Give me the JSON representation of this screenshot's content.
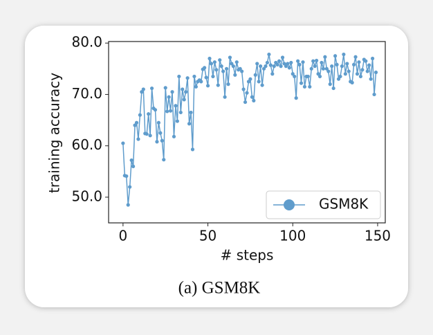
{
  "chart_data": {
    "type": "line",
    "caption": "(a) GSM8K",
    "xlabel": "# steps",
    "ylabel": "training accuracy",
    "xlim": [
      -8.5,
      154.5
    ],
    "ylim": [
      45,
      80.3
    ],
    "xticks": [
      0,
      50,
      100,
      150
    ],
    "yticks": [
      {
        "value": 50,
        "label": "50.0"
      },
      {
        "value": 60,
        "label": "60.0"
      },
      {
        "value": 70,
        "label": "70.0"
      },
      {
        "value": 80,
        "label": "80.0"
      }
    ],
    "legend": "lower right",
    "x": [
      0,
      1,
      2,
      3,
      4,
      5,
      6,
      7,
      8,
      9,
      10,
      11,
      12,
      13,
      14,
      15,
      16,
      17,
      18,
      19,
      20,
      21,
      22,
      23,
      24,
      25,
      26,
      27,
      28,
      29,
      30,
      31,
      32,
      33,
      34,
      35,
      36,
      37,
      38,
      39,
      40,
      41,
      42,
      43,
      44,
      45,
      46,
      47,
      48,
      49,
      50,
      51,
      52,
      53,
      54,
      55,
      56,
      57,
      58,
      59,
      60,
      61,
      62,
      63,
      64,
      65,
      66,
      67,
      68,
      69,
      70,
      71,
      72,
      73,
      74,
      75,
      76,
      77,
      78,
      79,
      80,
      81,
      82,
      83,
      84,
      85,
      86,
      87,
      88,
      89,
      90,
      91,
      92,
      93,
      94,
      95,
      96,
      97,
      98,
      99,
      100,
      101,
      102,
      103,
      104,
      105,
      106,
      107,
      108,
      109,
      110,
      111,
      112,
      113,
      114,
      115,
      116,
      117,
      118,
      119,
      120,
      121,
      122,
      123,
      124,
      125,
      126,
      127,
      128,
      129,
      130,
      131,
      132,
      133,
      134,
      135,
      136,
      137,
      138,
      139,
      140,
      141,
      142,
      143,
      144,
      145,
      146,
      147,
      148,
      149
    ],
    "series": [
      {
        "name": "GSM8K",
        "color": "#5f9ccc",
        "values": [
          60.5,
          54.2,
          54.1,
          48.5,
          52.0,
          57.2,
          56.0,
          64.0,
          64.5,
          61.3,
          66.0,
          70.5,
          71.0,
          62.4,
          62.3,
          66.2,
          62.0,
          71.2,
          67.3,
          67.0,
          60.8,
          64.5,
          62.5,
          61.0,
          57.3,
          71.3,
          66.7,
          69.5,
          66.8,
          70.5,
          61.8,
          67.8,
          64.8,
          73.5,
          66.5,
          71.0,
          69.0,
          70.5,
          73.2,
          64.3,
          66.5,
          59.3,
          73.5,
          71.5,
          72.5,
          72.8,
          72.5,
          74.9,
          75.2,
          73.3,
          71.7,
          77.0,
          76.0,
          73.5,
          76.3,
          74.8,
          71.8,
          76.7,
          75.5,
          74.5,
          69.5,
          75.0,
          72.0,
          77.2,
          76.0,
          75.5,
          73.8,
          76.3,
          74.8,
          75.0,
          74.5,
          71.0,
          68.5,
          70.3,
          72.5,
          73.0,
          69.5,
          68.8,
          73.8,
          76.0,
          72.5,
          75.5,
          71.8,
          75.0,
          75.5,
          76.2,
          77.8,
          75.7,
          74.0,
          75.5,
          76.2,
          75.8,
          76.5,
          75.5,
          77.2,
          76.0,
          75.5,
          76.0,
          75.2,
          76.2,
          74.0,
          73.5,
          69.3,
          76.5,
          75.8,
          72.2,
          76.3,
          71.5,
          73.5,
          73.5,
          71.5,
          75.0,
          76.5,
          75.5,
          76.6,
          74.0,
          73.5,
          76.2,
          75.0,
          77.3,
          75.0,
          74.5,
          72.0,
          75.5,
          71.2,
          77.5,
          75.8,
          73.0,
          73.5,
          75.5,
          77.8,
          74.0,
          76.0,
          74.5,
          72.5,
          72.3,
          75.8,
          77.3,
          74.0,
          76.3,
          73.5,
          74.8,
          76.8,
          76.5,
          74.5,
          75.7,
          73.0,
          77.0,
          70.0,
          74.3
        ]
      }
    ]
  }
}
